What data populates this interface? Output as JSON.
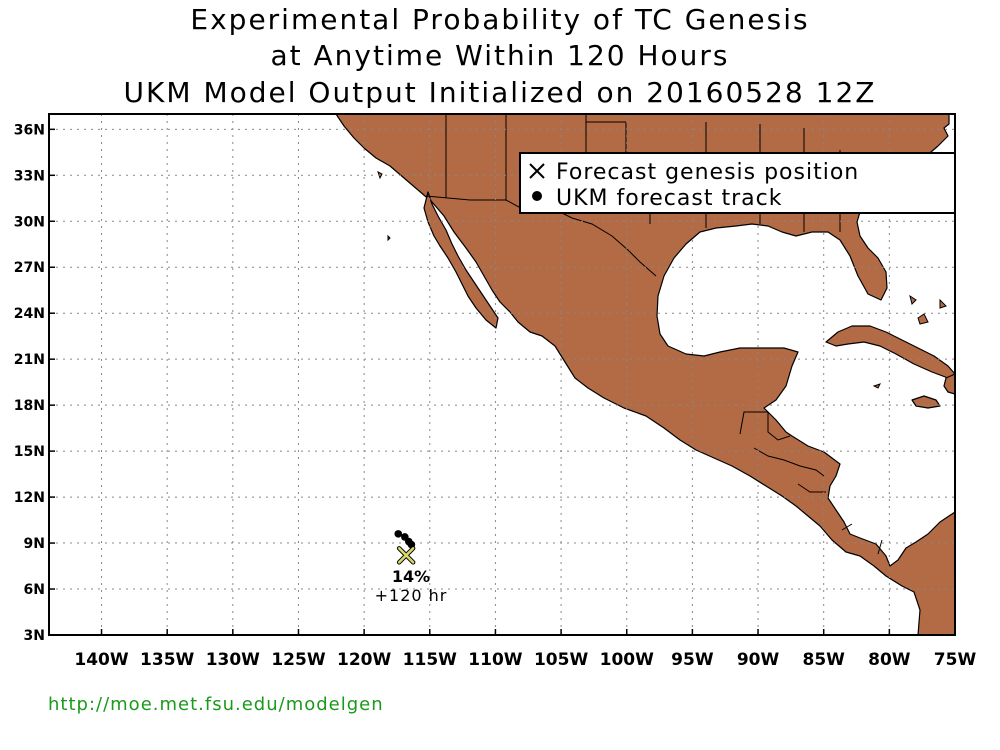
{
  "title": {
    "line1": "Experimental Probability of TC Genesis",
    "line2": "at Anytime Within 120 Hours",
    "line3": "UKM Model Output Initialized on 20160528 12Z"
  },
  "map": {
    "lon_range": [
      -144,
      -75
    ],
    "lat_range": [
      3,
      37
    ],
    "lat_ticks": [
      "36N",
      "33N",
      "30N",
      "27N",
      "24N",
      "21N",
      "18N",
      "15N",
      "12N",
      "9N",
      "6N",
      "3N"
    ],
    "lon_ticks": [
      "140W",
      "135W",
      "130W",
      "125W",
      "120W",
      "115W",
      "110W",
      "105W",
      "100W",
      "95W",
      "90W",
      "85W",
      "80W",
      "75W"
    ],
    "land_color": "#b36b45",
    "grid": "dotted"
  },
  "legend": {
    "genesis_label": "Forecast genesis position",
    "track_label": "UKM forecast track"
  },
  "forecast": {
    "probability": "14%",
    "lead_time": "+120 hr",
    "genesis_marker_color": "#d8d86a",
    "track_points": [
      {
        "lon": -117.4,
        "lat": 9.6
      },
      {
        "lon": -116.9,
        "lat": 9.4
      },
      {
        "lon": -116.6,
        "lat": 9.1
      },
      {
        "lon": -116.4,
        "lat": 8.9
      }
    ],
    "genesis": {
      "lon": -116.8,
      "lat": 8.2
    }
  },
  "footer": {
    "url": "http://moe.met.fsu.edu/modelgen",
    "url_color": "#1a9a1a"
  }
}
